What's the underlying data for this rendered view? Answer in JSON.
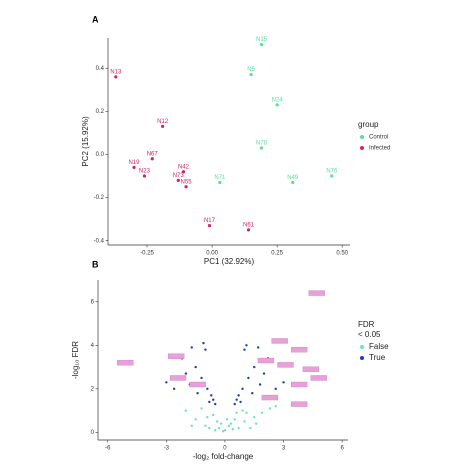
{
  "chart_data": [
    {
      "type": "scatter",
      "panel": "A",
      "x_label": "PC1 (32.92%)",
      "y_label": "PC2 (15.92%)",
      "legend_title": "group",
      "legend": "right",
      "xlim": [
        -0.4,
        0.53
      ],
      "ylim": [
        -0.42,
        0.54
      ],
      "xticks": [
        {
          "value": -0.25,
          "label": "-0.25"
        },
        {
          "value": 0,
          "label": "0.00"
        },
        {
          "value": 0.25,
          "label": "0.25"
        },
        {
          "value": 0.5,
          "label": "0.50"
        }
      ],
      "yticks": [
        {
          "value": -0.4,
          "label": "-0.4"
        },
        {
          "value": -0.2,
          "label": "-0.2"
        },
        {
          "value": 0,
          "label": "0.0"
        },
        {
          "value": 0.2,
          "label": "0.2"
        },
        {
          "value": 0.4,
          "label": "0.4"
        }
      ],
      "grid": false,
      "series": [
        {
          "name": "Control",
          "color": "#5fdca0",
          "labels": [
            "N15",
            "N5",
            "N24",
            "N78",
            "N49",
            "N76",
            "N71"
          ],
          "x": [
            0.19,
            0.15,
            0.25,
            0.19,
            0.31,
            0.46,
            0.03
          ],
          "values": [
            0.51,
            0.37,
            0.23,
            0.03,
            -0.13,
            -0.1,
            -0.13
          ]
        },
        {
          "name": "Infected",
          "color": "#d1236b",
          "labels": [
            "N13",
            "N12",
            "N67",
            "N19",
            "N23",
            "N42",
            "N73",
            "N55",
            "N17",
            "N61"
          ],
          "x": [
            -0.37,
            -0.19,
            -0.23,
            -0.3,
            -0.26,
            -0.11,
            -0.13,
            -0.1,
            -0.01,
            0.14
          ],
          "values": [
            0.36,
            0.13,
            -0.02,
            -0.06,
            -0.1,
            -0.08,
            -0.12,
            -0.15,
            -0.33,
            -0.35
          ]
        }
      ]
    },
    {
      "type": "scatter",
      "panel": "B",
      "x_label": "-log₂ fold-change",
      "y_label": "-log₁₀ FDR",
      "legend_title": "FDR\n< 0.05",
      "legend": "right",
      "xlim": [
        -6.5,
        6.3
      ],
      "ylim": [
        -0.35,
        7.0
      ],
      "xticks": [
        -6,
        -3,
        0,
        3,
        6
      ],
      "yticks": [
        0,
        2,
        4,
        6
      ],
      "grid": false,
      "series": [
        {
          "name": "False",
          "color": "#6ee3b4",
          "x": [
            -1.5,
            -1.0,
            -0.6,
            -0.3,
            0,
            0.3,
            0.6,
            1.0,
            1.5,
            -2.0,
            -1.2,
            -0.8,
            -0.4,
            -0.1,
            0.2,
            0.5,
            0.9,
            1.3,
            1.9,
            2.3,
            -0.5,
            0.4,
            -0.2,
            0.1,
            0.7,
            -0.9,
            1.1,
            -1.7,
            1.6,
            2.6
          ],
          "values": [
            0.6,
            0.3,
            0.8,
            0.2,
            0.1,
            0.4,
            0.9,
            0.5,
            0.7,
            1.0,
            1.1,
            0.2,
            0.5,
            0.05,
            0.3,
            0.6,
            1.0,
            0.2,
            0.9,
            1.1,
            0.1,
            0.15,
            0.4,
            0.6,
            0.2,
            0.7,
            0.9,
            0.3,
            0.4,
            1.2
          ]
        },
        {
          "name": "True",
          "color": "#1c3fb8",
          "x": [
            -0.6,
            -0.9,
            -1.2,
            -1.5,
            -1.8,
            -2.2,
            -2.6,
            -1.0,
            -1.4,
            -0.8,
            -0.5,
            -2.0,
            -1.7,
            -3.0,
            0.6,
            0.9,
            1.2,
            1.5,
            1.8,
            2.2,
            2.6,
            1.0,
            1.4,
            0.8,
            0.5,
            2.0,
            1.7,
            3.0,
            -1.1,
            1.1,
            -0.7,
            0.7,
            -5.0
          ],
          "values": [
            1.5,
            2.0,
            2.5,
            3.0,
            2.2,
            3.4,
            2.0,
            3.8,
            1.8,
            1.4,
            1.3,
            2.7,
            3.9,
            2.3,
            1.5,
            2.0,
            2.5,
            3.0,
            2.2,
            3.4,
            2.0,
            3.8,
            1.8,
            1.4,
            1.3,
            2.7,
            3.9,
            2.3,
            4.1,
            4.0,
            1.7,
            1.7,
            3.2
          ]
        }
      ],
      "highlights": {
        "color": "#e8a0d8",
        "x": [
          -5.1,
          -2.5,
          -2.4,
          -1.4,
          4.7,
          2.8,
          3.8,
          3.1,
          4.4,
          4.8,
          3.8,
          2.3,
          3.8,
          2.1
        ],
        "values": [
          3.2,
          3.5,
          2.5,
          2.2,
          6.4,
          4.2,
          3.8,
          3.1,
          2.9,
          2.5,
          2.2,
          1.6,
          1.3,
          3.3
        ]
      }
    }
  ]
}
